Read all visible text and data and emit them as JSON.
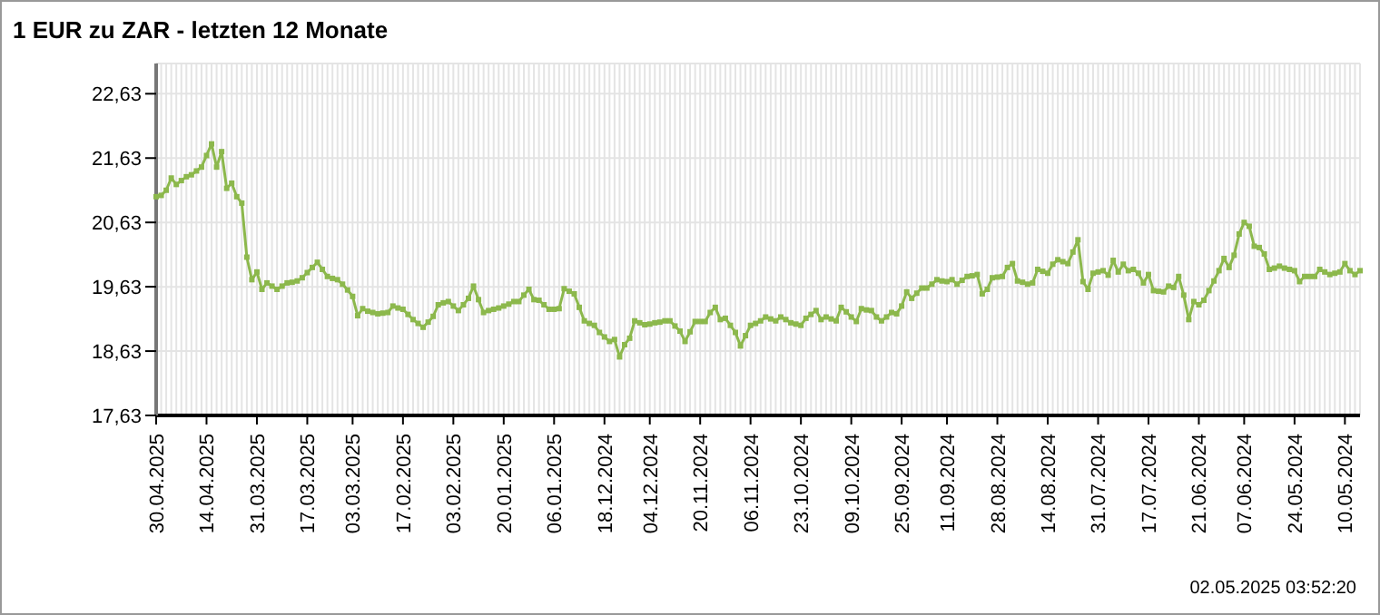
{
  "chart_data": {
    "type": "line",
    "title": "1 EUR zu ZAR - letzten 12 Monate",
    "annotations": [
      "02.05.2025 03:52:20"
    ],
    "categories": [
      "30.04.2025",
      null,
      null,
      null,
      null,
      null,
      null,
      null,
      null,
      null,
      "14.04.2025",
      null,
      null,
      null,
      null,
      null,
      null,
      null,
      null,
      null,
      "31.03.2025",
      null,
      null,
      null,
      null,
      null,
      null,
      null,
      null,
      null,
      "17.03.2025",
      null,
      null,
      null,
      null,
      null,
      null,
      null,
      null,
      "03.03.2025",
      null,
      null,
      null,
      null,
      null,
      null,
      null,
      null,
      null,
      "17.02.2025",
      null,
      null,
      null,
      null,
      null,
      null,
      null,
      null,
      null,
      "03.02.2025",
      null,
      null,
      null,
      null,
      null,
      null,
      null,
      null,
      null,
      "20.01.2025",
      null,
      null,
      null,
      null,
      null,
      null,
      null,
      null,
      null,
      "06.01.2025",
      null,
      null,
      null,
      null,
      null,
      null,
      null,
      null,
      null,
      "18.12.2024",
      null,
      null,
      null,
      null,
      null,
      null,
      null,
      null,
      "04.12.2024",
      null,
      null,
      null,
      null,
      null,
      null,
      null,
      null,
      null,
      "20.11.2024",
      null,
      null,
      null,
      null,
      null,
      null,
      null,
      null,
      null,
      "06.11.2024",
      null,
      null,
      null,
      null,
      null,
      null,
      null,
      null,
      null,
      "23.10.2024",
      null,
      null,
      null,
      null,
      null,
      null,
      null,
      null,
      null,
      "09.10.2024",
      null,
      null,
      null,
      null,
      null,
      null,
      null,
      null,
      null,
      "25.09.2024",
      null,
      null,
      null,
      null,
      null,
      null,
      null,
      null,
      "11.09.2024",
      null,
      null,
      null,
      null,
      null,
      null,
      null,
      null,
      null,
      "28.08.2024",
      null,
      null,
      null,
      null,
      null,
      null,
      null,
      null,
      null,
      "14.08.2024",
      null,
      null,
      null,
      null,
      null,
      null,
      null,
      null,
      null,
      "31.07.2024",
      null,
      null,
      null,
      null,
      null,
      null,
      null,
      null,
      null,
      "17.07.2024",
      null,
      null,
      null,
      null,
      null,
      null,
      null,
      null,
      null,
      "21.06.2024",
      null,
      null,
      null,
      null,
      null,
      null,
      null,
      null,
      "07.06.2024",
      null,
      null,
      null,
      null,
      null,
      null,
      null,
      null,
      null,
      "24.05.2024",
      null,
      null,
      null,
      null,
      null,
      null,
      null,
      null,
      null,
      "10.05.2024",
      null,
      null,
      null
    ],
    "ylim": [
      17.63,
      23.1
    ],
    "yticks": [
      {
        "value": 17.63,
        "label": "17,63"
      },
      {
        "value": 18.63,
        "label": "18,63"
      },
      {
        "value": 19.63,
        "label": "19,63"
      },
      {
        "value": 20.63,
        "label": "20,63"
      },
      {
        "value": 21.63,
        "label": "21,63"
      },
      {
        "value": 22.63,
        "label": "22,63"
      }
    ],
    "grid": true,
    "marker": "square",
    "line_style": "solid",
    "series": [
      {
        "color": "#8cb84c",
        "values": [
          21.03,
          21.05,
          21.13,
          21.32,
          21.22,
          21.28,
          21.34,
          21.37,
          21.43,
          21.49,
          21.67,
          21.85,
          21.49,
          21.73,
          21.16,
          21.24,
          21.03,
          20.93,
          20.09,
          19.74,
          19.86,
          19.59,
          19.69,
          19.64,
          19.59,
          19.64,
          19.69,
          19.7,
          19.72,
          19.77,
          19.85,
          19.93,
          20.01,
          19.9,
          19.79,
          19.76,
          19.74,
          19.67,
          19.58,
          19.48,
          19.18,
          19.29,
          19.25,
          19.23,
          19.21,
          19.22,
          19.23,
          19.33,
          19.3,
          19.28,
          19.2,
          19.12,
          19.06,
          19.0,
          19.08,
          19.17,
          19.35,
          19.38,
          19.4,
          19.33,
          19.26,
          19.35,
          19.45,
          19.64,
          19.43,
          19.23,
          19.26,
          19.28,
          19.3,
          19.33,
          19.36,
          19.4,
          19.4,
          19.5,
          19.59,
          19.43,
          19.42,
          19.35,
          19.28,
          19.28,
          19.29,
          19.6,
          19.56,
          19.52,
          19.31,
          19.1,
          19.06,
          19.03,
          18.92,
          18.85,
          18.78,
          18.81,
          18.54,
          18.73,
          18.83,
          19.1,
          19.07,
          19.04,
          19.05,
          19.07,
          19.08,
          19.1,
          19.1,
          19.02,
          18.94,
          18.78,
          18.93,
          19.09,
          19.09,
          19.09,
          19.23,
          19.31,
          19.12,
          19.14,
          19.03,
          18.92,
          18.71,
          18.87,
          19.03,
          19.06,
          19.1,
          19.16,
          19.13,
          19.1,
          19.16,
          19.12,
          19.07,
          19.05,
          19.03,
          19.14,
          19.2,
          19.26,
          19.12,
          19.16,
          19.13,
          19.1,
          19.31,
          19.24,
          19.16,
          19.09,
          19.29,
          19.27,
          19.26,
          19.16,
          19.1,
          19.16,
          19.23,
          19.21,
          19.33,
          19.55,
          19.45,
          19.53,
          19.61,
          19.61,
          19.67,
          19.74,
          19.72,
          19.71,
          19.74,
          19.67,
          19.73,
          19.79,
          19.8,
          19.82,
          19.52,
          19.59,
          19.77,
          19.78,
          19.79,
          19.93,
          19.99,
          19.72,
          19.7,
          19.67,
          19.69,
          19.9,
          19.87,
          19.84,
          19.98,
          20.05,
          20.02,
          19.99,
          20.17,
          20.36,
          19.71,
          19.59,
          19.84,
          19.86,
          19.88,
          19.81,
          20.04,
          19.86,
          19.98,
          19.88,
          19.9,
          19.84,
          19.69,
          19.82,
          19.57,
          19.56,
          19.55,
          19.64,
          19.62,
          19.79,
          19.5,
          19.12,
          19.4,
          19.35,
          19.42,
          19.57,
          19.72,
          19.88,
          20.07,
          19.93,
          20.12,
          20.45,
          20.63,
          20.57,
          20.26,
          20.24,
          20.14,
          19.9,
          19.92,
          19.95,
          19.92,
          19.9,
          19.88,
          19.71,
          19.79,
          19.79,
          19.79,
          19.9,
          19.86,
          19.82,
          19.84,
          19.86,
          19.99,
          19.88,
          19.82,
          19.88
        ]
      }
    ]
  }
}
